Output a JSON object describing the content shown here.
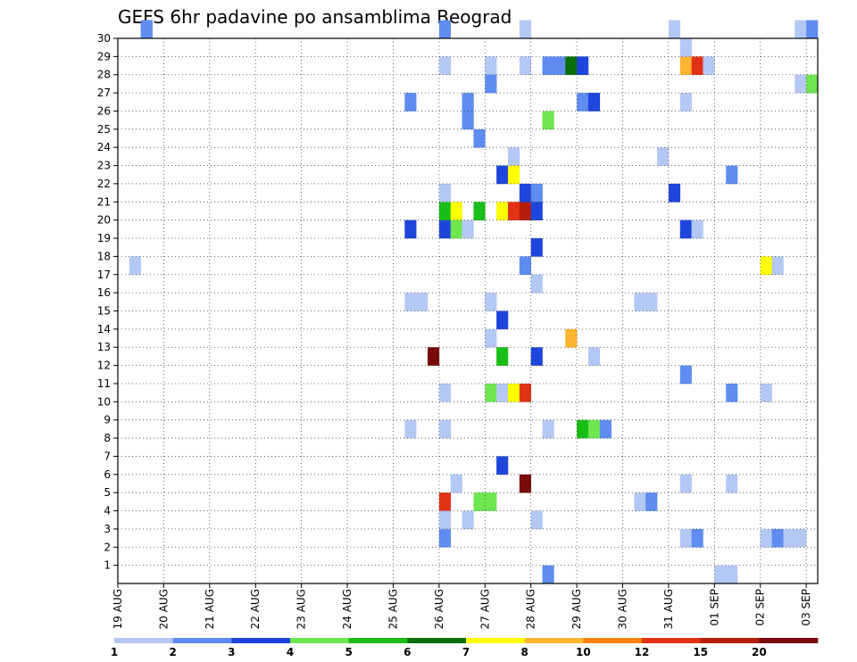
{
  "chart_data": {
    "type": "heatmap",
    "title": "GEFS 6hr padavine po ansamblima Beograd",
    "xlabel": "",
    "ylabel": "",
    "x_ticks": [
      "19 AUG",
      "20 AUG",
      "21 AUG",
      "22 AUG",
      "23 AUG",
      "24 AUG",
      "25 AUG",
      "26 AUG",
      "27 AUG",
      "28 AUG",
      "29 AUG",
      "30 AUG",
      "31 AUG",
      "01 SEP",
      "02 SEP",
      "03 SEP"
    ],
    "y_ticks": [
      "1",
      "2",
      "3",
      "4",
      "5",
      "6",
      "7",
      "8",
      "9",
      "10",
      "11",
      "12",
      "13",
      "14",
      "15",
      "16",
      "17",
      "18",
      "19",
      "20",
      "21",
      "22",
      "23",
      "24",
      "25",
      "26",
      "27",
      "28",
      "29",
      "30"
    ],
    "x_range_steps": [
      0,
      61
    ],
    "y_range": [
      0,
      30
    ],
    "grid": true,
    "colorbar": {
      "levels": [
        "1",
        "2",
        "3",
        "4",
        "5",
        "6",
        "7",
        "8",
        "10",
        "12",
        "15",
        "20"
      ],
      "colors": [
        "#b4c8f5",
        "#5f8cf0",
        "#1e46dc",
        "#6ee650",
        "#19be19",
        "#0a6e0a",
        "#ffff00",
        "#ffb432",
        "#ff8200",
        "#e13214",
        "#b41e0a",
        "#780a0a"
      ]
    },
    "cells": [
      [
        1,
        17,
        0
      ],
      [
        2,
        30,
        1
      ],
      [
        2,
        30,
        1
      ],
      [
        28,
        30,
        1
      ],
      [
        28,
        2,
        1
      ],
      [
        28,
        4,
        9
      ],
      [
        28,
        19,
        2
      ],
      [
        28,
        20,
        4
      ],
      [
        28,
        21,
        0
      ],
      [
        28,
        28,
        0
      ],
      [
        28,
        10,
        0
      ],
      [
        28,
        8,
        0
      ],
      [
        28,
        3,
        0
      ],
      [
        25,
        26,
        1
      ],
      [
        25,
        19,
        2
      ],
      [
        25,
        15,
        0
      ],
      [
        25,
        8,
        0
      ],
      [
        26,
        15,
        0
      ],
      [
        27,
        12,
        11
      ],
      [
        29,
        20,
        6
      ],
      [
        29,
        19,
        3
      ],
      [
        29,
        5,
        0
      ],
      [
        30,
        26,
        1
      ],
      [
        30,
        25,
        1
      ],
      [
        30,
        19,
        0
      ],
      [
        30,
        3,
        0
      ],
      [
        31,
        24,
        1
      ],
      [
        31,
        20,
        4
      ],
      [
        31,
        4,
        3
      ],
      [
        32,
        4,
        3
      ],
      [
        32,
        28,
        0
      ],
      [
        32,
        27,
        1
      ],
      [
        32,
        15,
        0
      ],
      [
        32,
        13,
        0
      ],
      [
        32,
        10,
        3
      ],
      [
        33,
        22,
        2
      ],
      [
        33,
        20,
        6
      ],
      [
        33,
        14,
        2
      ],
      [
        33,
        12,
        4
      ],
      [
        33,
        6,
        2
      ],
      [
        33,
        10,
        0
      ],
      [
        34,
        23,
        0
      ],
      [
        34,
        22,
        6
      ],
      [
        34,
        20,
        9
      ],
      [
        34,
        10,
        6
      ],
      [
        35,
        20,
        10
      ],
      [
        35,
        17,
        1
      ],
      [
        35,
        5,
        11
      ],
      [
        35,
        28,
        0
      ],
      [
        35,
        21,
        2
      ],
      [
        35,
        10,
        9
      ],
      [
        35,
        30,
        0
      ],
      [
        36,
        21,
        1
      ],
      [
        36,
        20,
        2
      ],
      [
        36,
        18,
        2
      ],
      [
        36,
        16,
        0
      ],
      [
        36,
        12,
        2
      ],
      [
        36,
        3,
        0
      ],
      [
        37,
        28,
        1
      ],
      [
        37,
        0,
        1
      ],
      [
        37,
        25,
        3
      ],
      [
        37,
        8,
        0
      ],
      [
        38,
        28,
        1
      ],
      [
        39,
        28,
        5
      ],
      [
        39,
        13,
        7
      ],
      [
        40,
        28,
        2
      ],
      [
        40,
        26,
        1
      ],
      [
        40,
        8,
        4
      ],
      [
        41,
        26,
        2
      ],
      [
        41,
        12,
        0
      ],
      [
        41,
        8,
        3
      ],
      [
        42,
        8,
        1
      ],
      [
        45,
        15,
        0
      ],
      [
        45,
        4,
        0
      ],
      [
        46,
        15,
        0
      ],
      [
        46,
        4,
        1
      ],
      [
        47,
        23,
        0
      ],
      [
        48,
        30,
        0
      ],
      [
        48,
        21,
        2
      ],
      [
        49,
        28,
        7
      ],
      [
        50,
        28,
        9
      ],
      [
        49,
        29,
        0
      ],
      [
        49,
        26,
        0
      ],
      [
        49,
        19,
        2
      ],
      [
        49,
        11,
        1
      ],
      [
        49,
        5,
        0
      ],
      [
        49,
        2,
        0
      ],
      [
        50,
        19,
        0
      ],
      [
        50,
        2,
        1
      ],
      [
        51,
        28,
        0
      ],
      [
        52,
        0,
        0
      ],
      [
        53,
        0,
        0
      ],
      [
        53,
        22,
        1
      ],
      [
        53,
        10,
        1
      ],
      [
        53,
        5,
        0
      ],
      [
        56,
        17,
        6
      ],
      [
        56,
        10,
        0
      ],
      [
        56,
        2,
        0
      ],
      [
        57,
        17,
        0
      ],
      [
        57,
        2,
        1
      ],
      [
        58,
        2,
        0
      ],
      [
        59,
        2,
        0
      ],
      [
        59,
        30,
        0
      ],
      [
        60,
        30,
        1
      ],
      [
        59,
        27,
        0
      ],
      [
        60,
        27,
        3
      ]
    ]
  }
}
